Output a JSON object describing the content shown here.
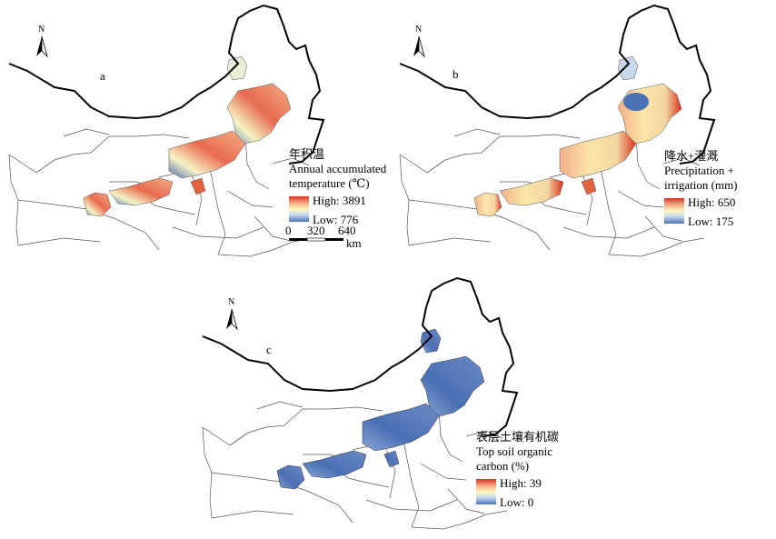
{
  "panels": [
    {
      "id": "a",
      "label": "a",
      "legend": {
        "title_cn": "年积温",
        "title_en_1": "Annual accumulated",
        "title_en_2": "temperature (℃)",
        "high": "High: 3891",
        "low": "Low: 776",
        "color_high": "#d7301f",
        "color_low": "#4a73b5"
      },
      "scalebar": {
        "ticks": [
          "0",
          "320",
          "640"
        ],
        "unit": "km"
      },
      "north": "N"
    },
    {
      "id": "b",
      "label": "b",
      "legend": {
        "title_cn": "降水+灌溉",
        "title_en_1": "Precipitation +",
        "title_en_2": "irrigation (mm)",
        "high": "High: 650",
        "low": "Low: 175",
        "color_high": "#d7301f",
        "color_low": "#4a73b5"
      },
      "north": "N"
    },
    {
      "id": "c",
      "label": "c",
      "legend": {
        "title_cn": "表层土壤有机碳",
        "title_en_1": "Top soil organic",
        "title_en_2": "carbon (%)",
        "high": "High: 39",
        "low": "Low: 0",
        "color_high": "#d7301f",
        "color_low": "#4a73b5"
      },
      "north": "N"
    }
  ]
}
